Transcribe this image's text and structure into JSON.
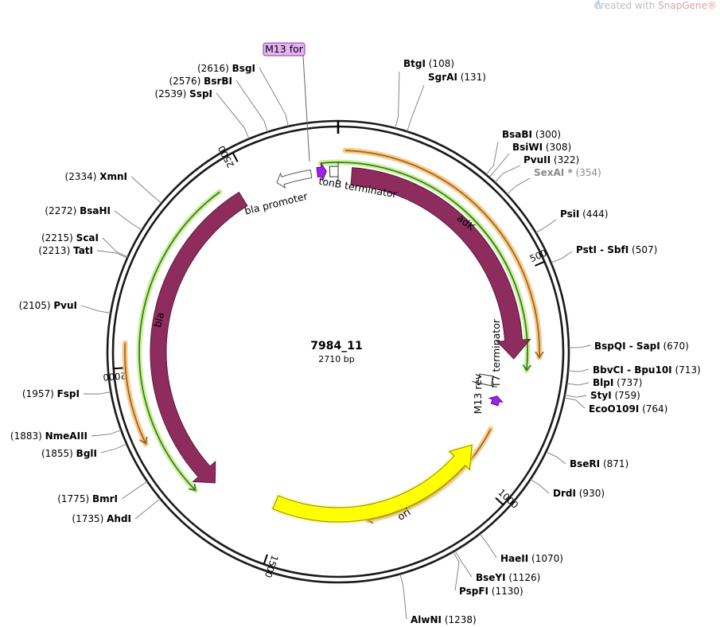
{
  "watermark": {
    "text": "Created with ",
    "brand": "SnapGene®"
  },
  "map": {
    "name": "7984_11",
    "length_label": "2710 bp",
    "length": 2710,
    "tick_labels": [
      "500",
      "1000",
      "1500",
      "2000",
      "2500"
    ]
  },
  "features": [
    {
      "label": "adK",
      "color": "#8e2c5e"
    },
    {
      "label": "ori",
      "color": "#ffff00"
    },
    {
      "label": "bla",
      "color": "#8e2c5e"
    },
    {
      "label": "bla promoter",
      "color": "#ffffff"
    },
    {
      "label": "tonB terminator",
      "color": "#ffffff"
    },
    {
      "label": "T7 terminator",
      "color": "#ffffff"
    },
    {
      "label": "M13 rev",
      "color": "#a020f0"
    },
    {
      "label": "M13 for",
      "color": "#a020f0"
    }
  ],
  "sites": [
    {
      "name": "BtgI",
      "pos": "(108)"
    },
    {
      "name": "SgrAI",
      "pos": "(131)"
    },
    {
      "name": "BsaBI",
      "pos": "(300)"
    },
    {
      "name": "BsiWI",
      "pos": "(308)"
    },
    {
      "name": "PvuII",
      "pos": "(322)"
    },
    {
      "name": "SexAI *",
      "pos": "(354)"
    },
    {
      "name": "PsiI",
      "pos": "(444)"
    },
    {
      "name": "PstI",
      "sep": " - ",
      "name2": "SbfI",
      "pos": "(507)"
    },
    {
      "name": "BspQI",
      "sep": " - ",
      "name2": "SapI",
      "pos": "(670)"
    },
    {
      "name": "BbvCI",
      "sep": " - ",
      "name2": "Bpu10I",
      "pos": "(713)"
    },
    {
      "name": "BlpI",
      "pos": "(737)"
    },
    {
      "name": "StyI",
      "pos": "(759)"
    },
    {
      "name": "EcoO109I",
      "pos": "(764)"
    },
    {
      "name": "BseRI",
      "pos": "(871)"
    },
    {
      "name": "DrdI",
      "pos": "(930)"
    },
    {
      "name": "HaeII",
      "pos": "(1070)"
    },
    {
      "name": "BseYI",
      "pos": "(1126)"
    },
    {
      "name": "PspFI",
      "pos": "(1130)"
    },
    {
      "name": "AlwNI",
      "pos": "(1238)"
    },
    {
      "name": "AhdI",
      "pos": "(1735)"
    },
    {
      "name": "BmrI",
      "pos": "(1775)"
    },
    {
      "name": "BglI",
      "pos": "(1855)"
    },
    {
      "name": "NmeAIII",
      "pos": "(1883)"
    },
    {
      "name": "FspI",
      "pos": "(1957)"
    },
    {
      "name": "PvuI",
      "pos": "(2105)"
    },
    {
      "name": "TatI",
      "pos": "(2213)"
    },
    {
      "name": "ScaI",
      "pos": "(2215)"
    },
    {
      "name": "BsaHI",
      "pos": "(2272)"
    },
    {
      "name": "XmnI",
      "pos": "(2334)"
    },
    {
      "name": "SspI",
      "pos": "(2539)"
    },
    {
      "name": "BsrBI",
      "pos": "(2576)"
    },
    {
      "name": "BsgI",
      "pos": "(2616)"
    }
  ],
  "colors": {
    "backbone": "#1a1a1a",
    "feature_dark": "#8e2c5e",
    "ori": "#ffff00",
    "primer": "#a020f0",
    "orf_green": "#3a7d1e",
    "orf_orange": "#a0661a"
  }
}
